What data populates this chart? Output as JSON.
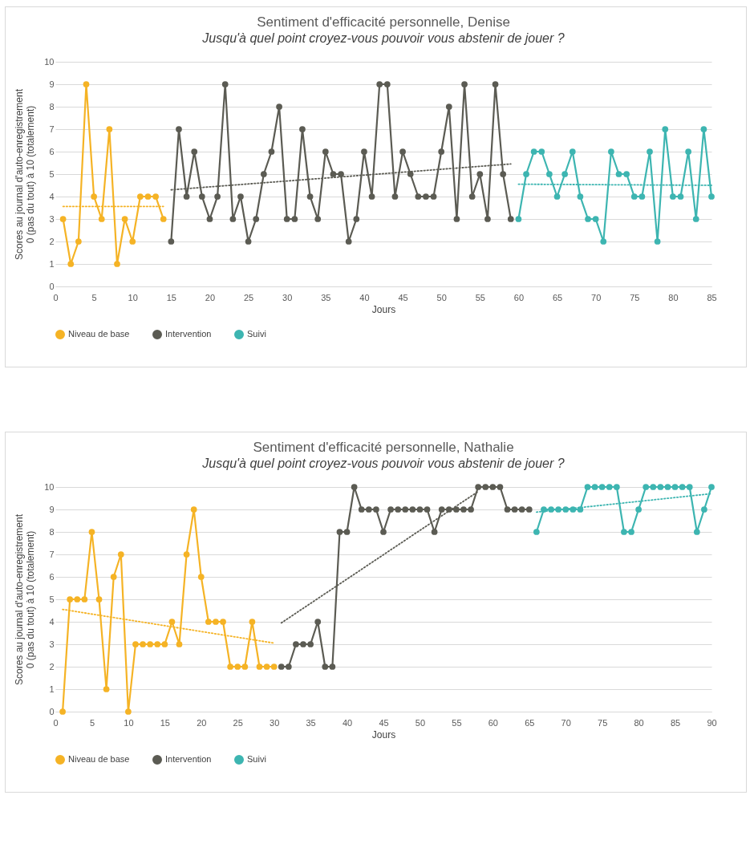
{
  "chart_data": [
    {
      "type": "line",
      "title": "Sentiment d'efficacité personnelle, Denise",
      "subtitle": "Jusqu'à quel point croyez-vous pouvoir vous abstenir de jouer ?",
      "xlabel": "Jours",
      "ylabel": "Scores au journal d'auto-enregistrement\n0 (pas du tout) à 10 (totalement)",
      "xlim": [
        0,
        85
      ],
      "xticks": [
        0,
        5,
        10,
        15,
        20,
        25,
        30,
        35,
        40,
        45,
        50,
        55,
        60,
        65,
        70,
        75,
        80,
        85
      ],
      "ylim": [
        0,
        10
      ],
      "yticks": [
        0,
        1,
        2,
        3,
        4,
        5,
        6,
        7,
        8,
        9,
        10
      ],
      "grid": "y",
      "legend": "bottom",
      "marker": "circle",
      "line_style": "solid",
      "series": [
        {
          "name": "Niveau de base",
          "color": "#f5b325",
          "x": [
            1,
            2,
            3,
            4,
            5,
            6,
            7,
            8,
            9,
            10,
            11,
            12,
            13,
            14
          ],
          "values": [
            3,
            1,
            2,
            9,
            4,
            3,
            7,
            1,
            3,
            2,
            4,
            4,
            4,
            3
          ]
        },
        {
          "name": "Intervention",
          "color": "#5b5b53",
          "x": [
            15,
            16,
            17,
            18,
            19,
            20,
            21,
            22,
            23,
            24,
            25,
            26,
            27,
            28,
            29,
            30,
            31,
            32,
            33,
            34,
            35,
            36,
            37,
            38,
            39,
            40,
            41,
            42,
            43,
            44,
            45,
            46,
            47,
            48,
            49,
            50,
            51,
            52,
            53,
            54,
            55,
            56,
            57,
            58,
            59
          ],
          "values": [
            2,
            7,
            4,
            6,
            4,
            3,
            4,
            9,
            3,
            4,
            2,
            3,
            5,
            6,
            8,
            3,
            3,
            7,
            4,
            3,
            6,
            5,
            5,
            2,
            3,
            6,
            4,
            9,
            9,
            4,
            6,
            5,
            4,
            4,
            4,
            6,
            8,
            3,
            9,
            4,
            5,
            3,
            9,
            5,
            3
          ]
        },
        {
          "name": "Suivi",
          "color": "#3db5b1",
          "x": [
            60,
            61,
            62,
            63,
            64,
            65,
            66,
            67,
            68,
            69,
            70,
            71,
            72,
            73,
            74,
            75,
            76,
            77,
            78,
            79,
            80,
            81,
            82,
            83,
            84,
            85
          ],
          "values": [
            3,
            5,
            6,
            6,
            5,
            4,
            5,
            6,
            4,
            3,
            3,
            2,
            6,
            5,
            5,
            4,
            4,
            6,
            2,
            7,
            4,
            4,
            6,
            3,
            7,
            4
          ]
        },
        {
          "type": "line",
          "color": "#f5b325",
          "line_style": "dotted",
          "marker": "none",
          "x": [
            1,
            14
          ],
          "values": [
            3.56,
            3.56
          ]
        },
        {
          "type": "line",
          "color": "#5b5b53",
          "line_style": "dotted",
          "marker": "none",
          "x": [
            15,
            59
          ],
          "values": [
            4.3,
            5.45
          ]
        },
        {
          "type": "line",
          "color": "#3db5b1",
          "line_style": "dotted",
          "marker": "none",
          "x": [
            60,
            85
          ],
          "values": [
            4.55,
            4.5
          ]
        }
      ]
    },
    {
      "type": "line",
      "title": "Sentiment d'efficacité personnelle, Nathalie",
      "subtitle": "Jusqu'à quel point croyez-vous pouvoir vous abstenir de jouer ?",
      "xlabel": "Jours",
      "ylabel": "Scores au journal d'auto-enregistrement\n0 (pas du tout) à 10 (totalement)",
      "xlim": [
        0,
        90
      ],
      "xticks": [
        0,
        5,
        10,
        15,
        20,
        25,
        30,
        35,
        40,
        45,
        50,
        55,
        60,
        65,
        70,
        75,
        80,
        85,
        90
      ],
      "ylim": [
        0,
        10
      ],
      "yticks": [
        0,
        1,
        2,
        3,
        4,
        5,
        6,
        7,
        8,
        9,
        10
      ],
      "grid": "y",
      "legend": "bottom",
      "marker": "circle",
      "line_style": "solid",
      "series": [
        {
          "name": "Niveau de base",
          "color": "#f5b325",
          "x": [
            1,
            2,
            3,
            4,
            5,
            6,
            7,
            8,
            9,
            10,
            11,
            12,
            13,
            14,
            15,
            16,
            17,
            18,
            19,
            20,
            21,
            22,
            23,
            24,
            25,
            26,
            27,
            28,
            29,
            30
          ],
          "values": [
            0,
            5,
            5,
            5,
            8,
            5,
            1,
            6,
            7,
            0,
            3,
            3,
            3,
            3,
            3,
            4,
            3,
            7,
            9,
            6,
            4,
            4,
            4,
            2,
            2,
            2,
            4,
            2,
            2,
            2
          ]
        },
        {
          "name": "Intervention",
          "color": "#5b5b53",
          "x": [
            31,
            32,
            33,
            34,
            35,
            36,
            37,
            38,
            39,
            40,
            41,
            42,
            43,
            44,
            45,
            46,
            47,
            48,
            49,
            50,
            51,
            52,
            53,
            54,
            55,
            56,
            57,
            58,
            59,
            60,
            61,
            62,
            63,
            64,
            65
          ],
          "values": [
            2,
            2,
            3,
            3,
            3,
            4,
            2,
            2,
            8,
            8,
            10,
            9,
            9,
            9,
            8,
            9,
            9,
            9,
            9,
            9,
            9,
            8,
            9,
            9,
            9,
            9,
            9,
            10,
            10,
            10,
            10,
            9,
            9,
            9,
            9
          ]
        },
        {
          "name": "Suivi",
          "color": "#3db5b1",
          "x": [
            66,
            67,
            68,
            69,
            70,
            71,
            72,
            73,
            74,
            75,
            76,
            77,
            78,
            79,
            80,
            81,
            82,
            83,
            84,
            85,
            86,
            87,
            88,
            89,
            90
          ],
          "values": [
            8,
            9,
            9,
            9,
            9,
            9,
            9,
            10,
            10,
            10,
            10,
            10,
            8,
            8,
            9,
            10,
            10,
            10,
            10,
            10,
            10,
            10,
            8,
            9,
            10
          ]
        },
        {
          "type": "line",
          "color": "#f5b325",
          "line_style": "dotted",
          "marker": "none",
          "x": [
            1,
            30
          ],
          "values": [
            4.55,
            3.05
          ]
        },
        {
          "type": "line",
          "color": "#5b5b53",
          "line_style": "dotted",
          "marker": "none",
          "x": [
            31,
            58
          ],
          "values": [
            3.95,
            9.8
          ]
        },
        {
          "type": "line",
          "color": "#3db5b1",
          "line_style": "dotted",
          "marker": "none",
          "x": [
            66,
            90
          ],
          "values": [
            8.88,
            9.7
          ]
        }
      ]
    }
  ]
}
